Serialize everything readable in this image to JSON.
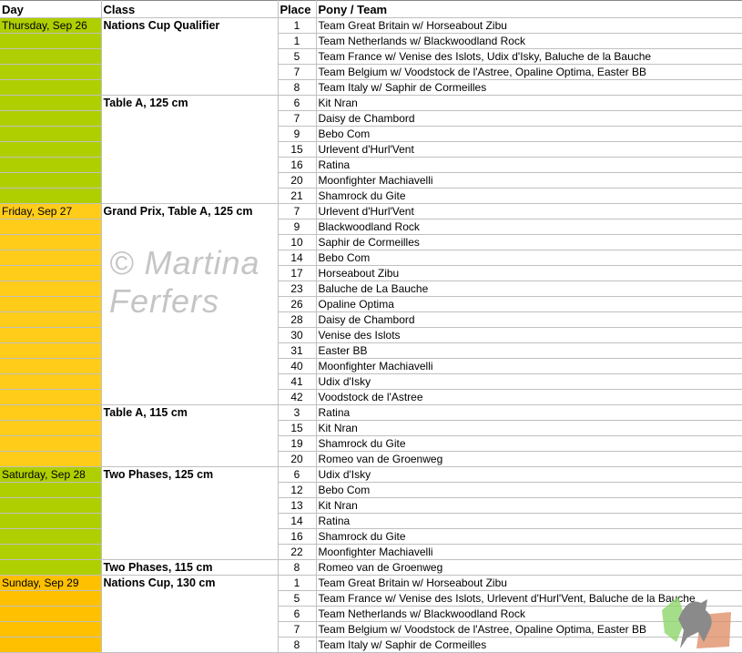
{
  "headers": {
    "day": "Day",
    "class": "Class",
    "place": "Place",
    "pony": "Pony / Team"
  },
  "colors": {
    "thursday": "#b0cf00",
    "friday": "#ffcc1a",
    "saturday": "#b0cf00",
    "sunday": "#ffc000"
  },
  "watermark": "© Martina Ferfers",
  "days": [
    {
      "label": "Thursday, Sep 26",
      "color_key": "thursday",
      "classes": [
        {
          "name": "Nations Cup Qualifier",
          "results": [
            [
              "1",
              "Team Great Britain w/ Horseabout Zibu"
            ],
            [
              "1",
              "Team Netherlands w/ Blackwoodland Rock"
            ],
            [
              "5",
              "Team France w/ Venise des Islots, Udix d'Isky, Baluche de la Bauche"
            ],
            [
              "7",
              "Team Belgium w/ Voodstock de l'Astree, Opaline Optima, Easter BB"
            ],
            [
              "8",
              "Team Italy w/ Saphir de Cormeilles"
            ]
          ]
        },
        {
          "name": "Table A, 125 cm",
          "results": [
            [
              "6",
              "Kit Nran"
            ],
            [
              "7",
              "Daisy de Chambord"
            ],
            [
              "9",
              "Bebo Com"
            ],
            [
              "15",
              "Urlevent d'Hurl'Vent"
            ],
            [
              "16",
              "Ratina"
            ],
            [
              "20",
              "Moonfighter Machiavelli"
            ],
            [
              "21",
              "Shamrock du Gite"
            ]
          ]
        }
      ]
    },
    {
      "label": "Friday, Sep 27",
      "color_key": "friday",
      "classes": [
        {
          "name": "Grand Prix, Table A, 125 cm",
          "results": [
            [
              "7",
              "Urlevent d'Hurl'Vent"
            ],
            [
              "9",
              "Blackwoodland Rock"
            ],
            [
              "10",
              "Saphir de Cormeilles"
            ],
            [
              "14",
              "Bebo Com"
            ],
            [
              "17",
              "Horseabout Zibu"
            ],
            [
              "23",
              "Baluche de La Bauche"
            ],
            [
              "26",
              "Opaline Optima"
            ],
            [
              "28",
              "Daisy de Chambord"
            ],
            [
              "30",
              "Venise des Islots"
            ],
            [
              "31",
              "Easter BB"
            ],
            [
              "40",
              "Moonfighter Machiavelli"
            ],
            [
              "41",
              "Udix d'Isky"
            ],
            [
              "42",
              "Voodstock de l'Astree"
            ]
          ]
        },
        {
          "name": "Table A, 115 cm",
          "results": [
            [
              "3",
              "Ratina"
            ],
            [
              "15",
              "Kit Nran"
            ],
            [
              "19",
              "Shamrock du Gite"
            ],
            [
              "20",
              "Romeo van de Groenweg"
            ]
          ]
        }
      ]
    },
    {
      "label": "Saturday, Sep 28",
      "color_key": "saturday",
      "classes": [
        {
          "name": "Two Phases, 125 cm",
          "results": [
            [
              "6",
              "Udix d'Isky"
            ],
            [
              "12",
              "Bebo Com"
            ],
            [
              "13",
              "Kit Nran"
            ],
            [
              "14",
              "Ratina"
            ],
            [
              "16",
              "Shamrock du Gite"
            ],
            [
              "22",
              "Moonfighter Machiavelli"
            ]
          ]
        },
        {
          "name": "Two Phases, 115 cm",
          "results": [
            [
              "8",
              "Romeo van de Groenweg"
            ]
          ]
        }
      ]
    },
    {
      "label": "Sunday, Sep 29",
      "color_key": "sunday",
      "classes": [
        {
          "name": "Nations Cup, 130 cm",
          "results": [
            [
              "1",
              "Team Great Britain w/ Horseabout Zibu"
            ],
            [
              "5",
              "Team France w/ Venise des Islots, Urlevent d'Hurl'Vent, Baluche de la Bauche"
            ],
            [
              "6",
              "Team Netherlands w/ Blackwoodland Rock"
            ],
            [
              "7",
              "Team Belgium w/ Voodstock de l'Astree, Opaline Optima, Easter BB"
            ],
            [
              "8",
              "Team Italy w/ Saphir de Cormeilles"
            ]
          ]
        }
      ]
    }
  ]
}
